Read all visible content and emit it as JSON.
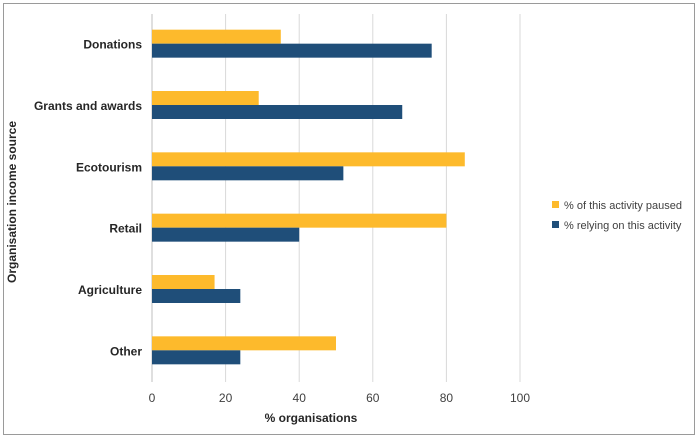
{
  "chart_data": {
    "type": "bar",
    "orientation": "horizontal",
    "categories": [
      "Donations",
      "Grants and awards",
      "Ecotourism",
      "Retail",
      "Agriculture",
      "Other"
    ],
    "series": [
      {
        "name": "% of this activity paused",
        "color": "#FDBA2C",
        "values": [
          35,
          29,
          85,
          80,
          17,
          50
        ]
      },
      {
        "name": "% relying on this activity",
        "color": "#1F4E79",
        "values": [
          76,
          68,
          52,
          40,
          24,
          24
        ]
      }
    ],
    "xlabel": "% organisations",
    "ylabel": "Organisation income source",
    "xlim": [
      0,
      100
    ],
    "xticks": [
      "0",
      "20",
      "40",
      "60",
      "80",
      "100"
    ],
    "grid": true,
    "legend_position": "right"
  }
}
